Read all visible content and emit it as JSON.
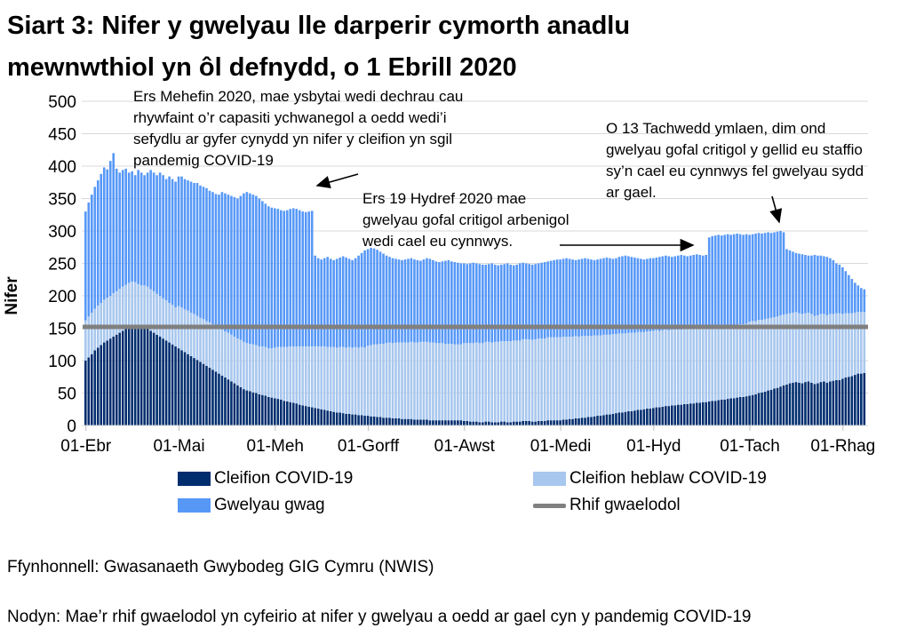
{
  "title": "Siart 3: Nifer y gwelyau lle darperir cymorth anadlu\nmewnwthiol yn ôl defnydd, o 1 Ebrill 2020",
  "annotations": {
    "june": "Ers Mehefin 2020, mae ysbytai wedi dechrau cau\nrhywfaint o’r capasiti ychwanegol a oedd wedi’i\nsefydlu ar gyfer cynydd yn nifer y cleifion yn sgil\npandemig COVID-19",
    "october": "Ers 19 Hydref 2020 mae\ngwelyau gofal critigol arbenigol\nwedi cael eu cynnwys.",
    "november": "O 13 Tachwedd ymlaen, dim ond\ngwelyau gofal critigol y gellid eu staffio\nsy’n cael eu cynnwys fel gwelyau sydd\nar gael."
  },
  "legend": {
    "items": [
      {
        "label": "Cleifion COVID-19",
        "color": "#002d6e",
        "kind": "box"
      },
      {
        "label": "Cleifion heblaw COVID-19",
        "color": "#a8c7ee",
        "kind": "box"
      },
      {
        "label": "Gwelyau gwag",
        "color": "#5798f7",
        "kind": "box"
      },
      {
        "label": "Rhif gwaelodol",
        "color": "#808080",
        "kind": "line"
      }
    ]
  },
  "footer": {
    "source": "Ffynhonnell: Gwasanaeth Gwybodeg GIG Cymru (NWIS)",
    "note": "Nodyn: Mae’r rhif gwaelodol yn cyfeirio at nifer y gwelyau a oedd ar gael cyn y pandemig COVID-19"
  },
  "chart_data": {
    "type": "bar",
    "stacked": true,
    "ylabel": "Nifer",
    "ylim": [
      0,
      500
    ],
    "y_ticks": [
      0,
      50,
      100,
      150,
      200,
      250,
      300,
      350,
      400,
      450,
      500
    ],
    "grid": "horizontal",
    "x_unit": "day",
    "x_start": "2020-04-01",
    "x_ticks": [
      {
        "label": "01-Ebr",
        "day": 0
      },
      {
        "label": "01-Mai",
        "day": 30
      },
      {
        "label": "01-Meh",
        "day": 61
      },
      {
        "label": "01-Gorff",
        "day": 91
      },
      {
        "label": "01-Awst",
        "day": 122
      },
      {
        "label": "01-Medi",
        "day": 153
      },
      {
        "label": "01-Hyd",
        "day": 183
      },
      {
        "label": "01-Tach",
        "day": 214
      },
      {
        "label": "01-Rhag",
        "day": 244
      }
    ],
    "baseline": {
      "label": "Rhif gwaelodol",
      "value": 152,
      "color": "#808080"
    },
    "colors": {
      "grid": "#d9d9d9",
      "tick": "#bfbfbf",
      "text": "#000000"
    },
    "series": [
      {
        "name": "Cleifion COVID-19",
        "color": "#002d6e",
        "values": [
          100,
          105,
          110,
          116,
          120,
          124,
          128,
          131,
          134,
          137,
          140,
          143,
          146,
          149,
          152,
          155,
          154,
          152,
          150,
          151,
          149,
          146,
          143,
          140,
          137,
          134,
          131,
          128,
          125,
          122,
          119,
          116,
          113,
          110,
          107,
          104,
          101,
          98,
          95,
          92,
          89,
          86,
          83,
          80,
          77,
          74,
          71,
          68,
          65,
          62,
          59,
          56,
          54,
          53,
          51,
          50,
          48,
          47,
          46,
          44,
          43,
          42,
          41,
          40,
          38,
          37,
          36,
          35,
          34,
          32,
          31,
          30,
          29,
          28,
          27,
          26,
          25,
          24,
          23,
          22,
          21,
          20,
          20,
          19,
          18,
          18,
          17,
          17,
          16,
          16,
          15,
          15,
          14,
          14,
          13,
          13,
          12,
          12,
          12,
          11,
          11,
          11,
          10,
          10,
          10,
          10,
          9,
          9,
          9,
          9,
          9,
          8,
          8,
          8,
          8,
          8,
          8,
          8,
          8,
          8,
          8,
          8,
          7,
          7,
          6,
          6,
          6,
          5,
          5,
          6,
          6,
          5,
          5,
          5,
          6,
          6,
          5,
          5,
          6,
          6,
          6,
          7,
          7,
          7,
          6,
          6,
          7,
          7,
          7,
          8,
          8,
          8,
          8,
          8,
          9,
          9,
          10,
          10,
          11,
          11,
          12,
          12,
          13,
          13,
          14,
          15,
          15,
          16,
          17,
          17,
          18,
          19,
          20,
          20,
          21,
          22,
          22,
          23,
          24,
          24,
          25,
          26,
          26,
          27,
          28,
          28,
          29,
          30,
          30,
          31,
          31,
          32,
          32,
          33,
          33,
          34,
          34,
          35,
          35,
          36,
          36,
          37,
          38,
          38,
          39,
          40,
          40,
          41,
          42,
          42,
          43,
          44,
          44,
          45,
          46,
          47,
          48,
          50,
          51,
          52,
          54,
          55,
          57,
          58,
          60,
          62,
          63,
          65,
          66,
          67,
          66,
          65,
          67,
          68,
          66,
          64,
          65,
          67,
          68,
          66,
          68,
          69,
          70,
          70,
          72,
          74,
          75,
          76,
          78,
          80,
          80,
          81
        ]
      },
      {
        "name": "Cleifion heblaw COVID-19",
        "color": "#a8c7ee",
        "values": [
          62,
          63,
          64,
          64,
          65,
          65,
          66,
          66,
          66,
          67,
          67,
          68,
          68,
          68,
          68,
          67,
          67,
          66,
          66,
          65,
          65,
          64,
          64,
          63,
          63,
          62,
          62,
          61,
          61,
          60,
          65,
          66,
          66,
          67,
          67,
          68,
          68,
          68,
          69,
          69,
          70,
          70,
          70,
          71,
          71,
          71,
          72,
          72,
          72,
          72,
          73,
          73,
          73,
          73,
          74,
          74,
          74,
          75,
          75,
          75,
          76,
          78,
          80,
          81,
          83,
          84,
          86,
          87,
          88,
          90,
          91,
          92,
          93,
          94,
          95,
          96,
          97,
          98,
          98,
          99,
          100,
          100,
          101,
          102,
          102,
          103,
          103,
          104,
          104,
          105,
          105,
          108,
          110,
          111,
          112,
          113,
          114,
          115,
          116,
          116,
          117,
          117,
          118,
          118,
          118,
          119,
          119,
          119,
          120,
          120,
          120,
          120,
          120,
          119,
          119,
          119,
          118,
          118,
          118,
          117,
          117,
          117,
          120,
          120,
          121,
          121,
          122,
          122,
          122,
          123,
          123,
          123,
          124,
          124,
          124,
          124,
          125,
          125,
          125,
          125,
          125,
          126,
          126,
          126,
          126,
          127,
          127,
          127,
          127,
          128,
          128,
          128,
          128,
          128,
          128,
          128,
          127,
          127,
          127,
          126,
          126,
          126,
          125,
          125,
          125,
          124,
          124,
          124,
          123,
          123,
          123,
          122,
          122,
          122,
          121,
          121,
          121,
          120,
          120,
          120,
          119,
          119,
          119,
          119,
          119,
          118,
          118,
          118,
          117,
          117,
          117,
          116,
          116,
          116,
          116,
          115,
          115,
          115,
          115,
          115,
          114,
          114,
          114,
          114,
          114,
          113,
          113,
          113,
          113,
          113,
          112,
          112,
          112,
          112,
          114,
          114,
          113,
          113,
          112,
          112,
          111,
          111,
          110,
          110,
          110,
          109,
          109,
          108,
          108,
          108,
          107,
          107,
          106,
          106,
          106,
          105,
          105,
          105,
          104,
          104,
          104,
          103,
          103,
          103,
          100,
          99,
          98,
          97,
          96,
          95,
          95,
          94
        ]
      },
      {
        "name": "Gwelyau gwag",
        "color": "#5798f7",
        "values": [
          168,
          176,
          182,
          188,
          193,
          199,
          204,
          198,
          208,
          216,
          189,
          179,
          180,
          179,
          170,
          170,
          165,
          176,
          174,
          170,
          176,
          184,
          183,
          183,
          190,
          190,
          187,
          195,
          194,
          194,
          200,
          202,
          201,
          201,
          202,
          202,
          205,
          204,
          204,
          205,
          203,
          204,
          204,
          205,
          212,
          213,
          213,
          214,
          215,
          216,
          222,
          229,
          233,
          232,
          231,
          230,
          228,
          224,
          221,
          219,
          217,
          215,
          213,
          211,
          210,
          211,
          212,
          213,
          212,
          210,
          208,
          207,
          208,
          209,
          140,
          136,
          134,
          136,
          139,
          136,
          134,
          137,
          138,
          140,
          139,
          136,
          135,
          137,
          142,
          145,
          150,
          149,
          150,
          148,
          146,
          142,
          139,
          135,
          132,
          131,
          129,
          128,
          127,
          128,
          129,
          129,
          128,
          127,
          125,
          127,
          129,
          129,
          127,
          126,
          125,
          126,
          128,
          129,
          127,
          127,
          126,
          125,
          123,
          122,
          123,
          124,
          122,
          122,
          121,
          119,
          120,
          122,
          119,
          118,
          118,
          119,
          120,
          118,
          116,
          117,
          119,
          118,
          117,
          116,
          116,
          116,
          116,
          117,
          118,
          117,
          118,
          119,
          120,
          120,
          120,
          121,
          120,
          119,
          117,
          119,
          119,
          120,
          119,
          118,
          116,
          117,
          118,
          118,
          119,
          118,
          116,
          117,
          118,
          119,
          120,
          118,
          117,
          116,
          114,
          113,
          112,
          112,
          113,
          112,
          112,
          114,
          114,
          114,
          114,
          112,
          113,
          114,
          115,
          113,
          112,
          113,
          114,
          114,
          113,
          111,
          113,
          139,
          140,
          141,
          141,
          140,
          141,
          141,
          139,
          140,
          141,
          139,
          138,
          138,
          134,
          134,
          135,
          134,
          133,
          133,
          133,
          131,
          131,
          131,
          130,
          127,
          100,
          97,
          94,
          91,
          92,
          92,
          90,
          88,
          90,
          94,
          92,
          90,
          89,
          90,
          86,
          83,
          77,
          75,
          72,
          65,
          59,
          53,
          46,
          41,
          37,
          35
        ]
      }
    ]
  }
}
